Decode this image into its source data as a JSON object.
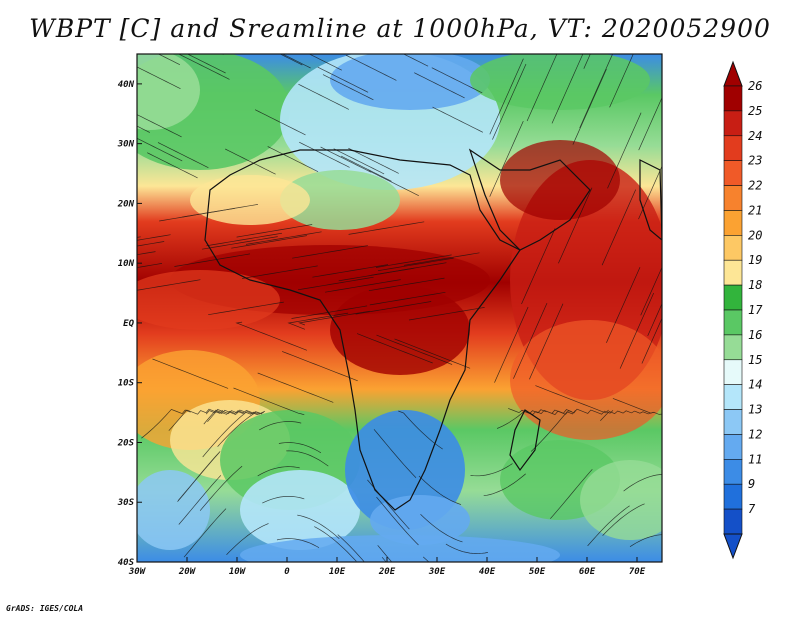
{
  "title": "WBPT [C] and Sreamline at 1000hPa, VT: 2020052900",
  "footer": "GrADS: IGES/COLA",
  "map": {
    "lon_range": [
      -30,
      75
    ],
    "lat_range": [
      -40,
      45
    ],
    "lon_ticks": [
      {
        "value": -30,
        "label": "30W"
      },
      {
        "value": -20,
        "label": "20W"
      },
      {
        "value": -10,
        "label": "10W"
      },
      {
        "value": 0,
        "label": "0"
      },
      {
        "value": 10,
        "label": "10E"
      },
      {
        "value": 20,
        "label": "20E"
      },
      {
        "value": 30,
        "label": "30E"
      },
      {
        "value": 40,
        "label": "40E"
      },
      {
        "value": 50,
        "label": "50E"
      },
      {
        "value": 60,
        "label": "60E"
      },
      {
        "value": 70,
        "label": "70E"
      }
    ],
    "lat_ticks": [
      {
        "value": 40,
        "label": "40N"
      },
      {
        "value": 30,
        "label": "30N"
      },
      {
        "value": 20,
        "label": "20N"
      },
      {
        "value": 10,
        "label": "10N"
      },
      {
        "value": 0,
        "label": "EQ"
      },
      {
        "value": -10,
        "label": "10S"
      },
      {
        "value": -20,
        "label": "20S"
      },
      {
        "value": -30,
        "label": "30S"
      },
      {
        "value": -40,
        "label": "40S"
      }
    ]
  },
  "colorbar": {
    "labels": [
      "26",
      "25",
      "24",
      "23",
      "22",
      "21",
      "20",
      "19",
      "18",
      "17",
      "16",
      "15",
      "14",
      "13",
      "12",
      "11",
      "9",
      "7"
    ],
    "colors": [
      "#a00000",
      "#c81e14",
      "#e23c1e",
      "#f05a28",
      "#f7822d",
      "#fba232",
      "#fdc864",
      "#fde696",
      "#32b43c",
      "#5ac864",
      "#96dc96",
      "#e6fafa",
      "#b4e6fa",
      "#8cc8f5",
      "#64aaf0",
      "#3c8ce6",
      "#2070dc",
      "#1450c8"
    ]
  }
}
